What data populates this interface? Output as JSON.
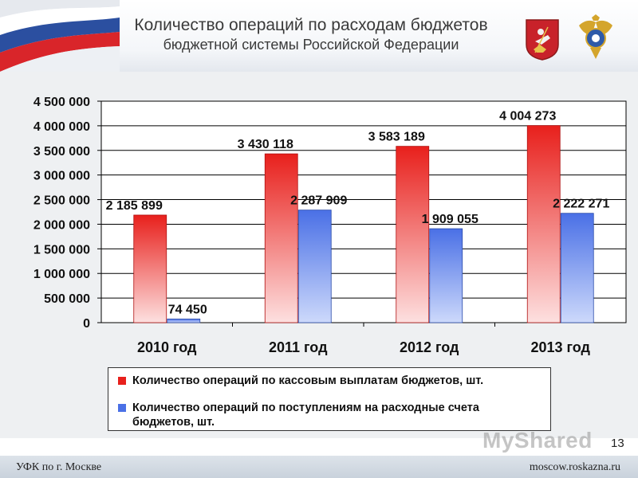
{
  "header": {
    "title_line1": "Количество операций по расходам бюджетов",
    "title_line2": "бюджетной системы Российской Федерации"
  },
  "colors": {
    "series_red": "#e8201c",
    "series_blue": "#4a70e6",
    "footer_bg": "#cfd7e0"
  },
  "chart_data": {
    "type": "bar",
    "categories": [
      "2010 год",
      "2011 год",
      "2012 год",
      "2013 год"
    ],
    "series": [
      {
        "name": "Количество операций по кассовым выплатам бюджетов, шт.",
        "values": [
          2185899,
          3430118,
          3583189,
          4004273
        ],
        "labels": [
          "2 185 899",
          "3 430 118",
          "3 583 189",
          "4 004 273"
        ],
        "color": "#e8201c"
      },
      {
        "name": "Количество операций по поступлениям на расходные счета бюджетов, шт.",
        "values": [
          74450,
          2287909,
          1909055,
          2222271
        ],
        "labels": [
          "74 450",
          "2 287 909",
          "1 909 055",
          "2 222 271"
        ],
        "color": "#4a70e6"
      }
    ],
    "ylim": [
      0,
      4500000
    ],
    "yticks": [
      0,
      500000,
      1000000,
      1500000,
      2000000,
      2500000,
      3000000,
      3500000,
      4000000,
      4500000
    ],
    "ytick_labels": [
      "0",
      "500 000",
      "1 000 000",
      "1 500 000",
      "2 000 000",
      "2 500 000",
      "3 000 000",
      "3 500 000",
      "4 000 000",
      "4 500 000"
    ],
    "legend_position": "bottom",
    "grid": true
  },
  "page_number": "13",
  "watermark": "MyShared",
  "footer": {
    "left": "УФК по г. Москве",
    "right": "moscow.roskazna.ru"
  }
}
